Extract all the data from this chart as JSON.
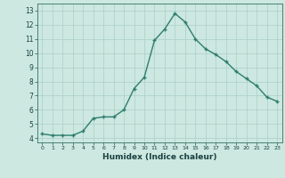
{
  "x": [
    0,
    1,
    2,
    3,
    4,
    5,
    6,
    7,
    8,
    9,
    10,
    11,
    12,
    13,
    14,
    15,
    16,
    17,
    18,
    19,
    20,
    21,
    22,
    23
  ],
  "y": [
    4.3,
    4.2,
    4.2,
    4.2,
    4.5,
    5.4,
    5.5,
    5.5,
    6.0,
    7.5,
    8.3,
    10.9,
    11.7,
    12.8,
    12.2,
    11.0,
    10.3,
    9.9,
    9.4,
    8.7,
    8.2,
    7.7,
    6.9,
    6.6
  ],
  "xlabel": "Humidex (Indice chaleur)",
  "xlim": [
    -0.5,
    23.5
  ],
  "ylim": [
    3.7,
    13.5
  ],
  "yticks": [
    4,
    5,
    6,
    7,
    8,
    9,
    10,
    11,
    12,
    13
  ],
  "xticks": [
    0,
    1,
    2,
    3,
    4,
    5,
    6,
    7,
    8,
    9,
    10,
    11,
    12,
    13,
    14,
    15,
    16,
    17,
    18,
    19,
    20,
    21,
    22,
    23
  ],
  "line_color": "#2e7d6e",
  "marker_color": "#2e7d6e",
  "bg_color": "#cce8e0",
  "grid_color": "#aacfc8",
  "tick_label_color": "#1a4040",
  "xlabel_color": "#1a4040"
}
